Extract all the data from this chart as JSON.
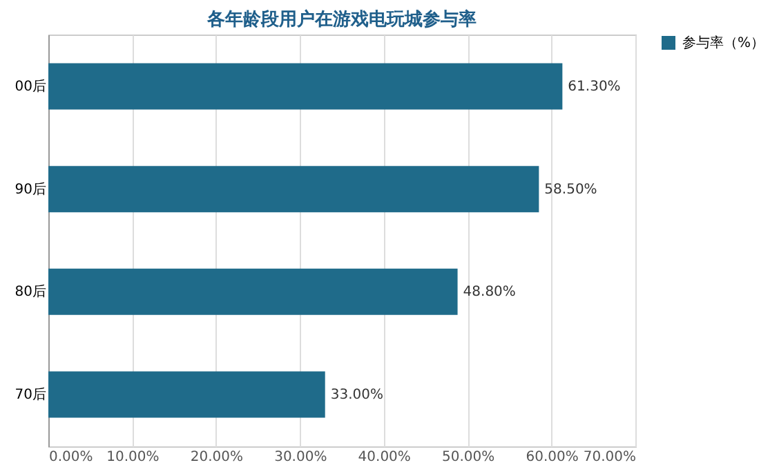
{
  "chart_data": {
    "type": "bar",
    "orientation": "horizontal",
    "title": "各年龄段用户在游戏电玩城参与率",
    "categories": [
      "00后",
      "90后",
      "80后",
      "70后"
    ],
    "series": [
      {
        "name": "参与率（%）",
        "color": "#1f6b8a",
        "values": [
          61.3,
          58.5,
          48.8,
          33.0
        ],
        "value_labels": [
          "61.30%",
          "58.50%",
          "48.80%",
          "33.00%"
        ]
      }
    ],
    "xlim": [
      0,
      70
    ],
    "xticks": [
      {
        "value": 0,
        "label": "0.00%"
      },
      {
        "value": 10,
        "label": "10.00%"
      },
      {
        "value": 20,
        "label": "20.00%"
      },
      {
        "value": 30,
        "label": "30.00%"
      },
      {
        "value": 40,
        "label": "40.00%"
      },
      {
        "value": 50,
        "label": "50.00%"
      },
      {
        "value": 60,
        "label": "60.00%"
      },
      {
        "value": 70,
        "label": "70.00%"
      }
    ],
    "grid": "x",
    "legend": "right"
  }
}
